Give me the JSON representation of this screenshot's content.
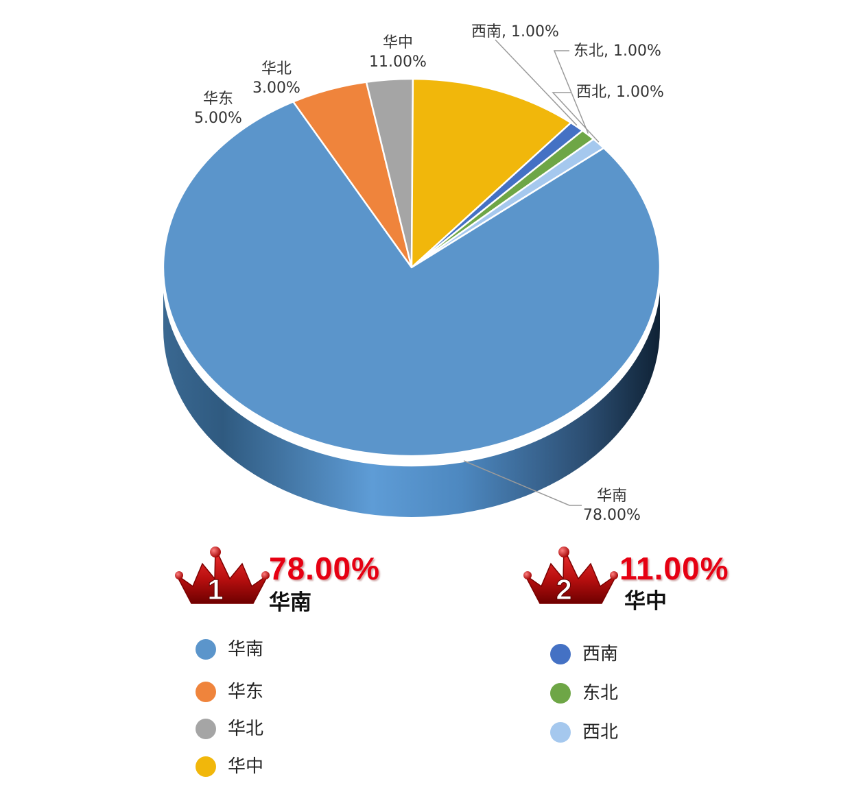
{
  "chart_data": {
    "type": "pie",
    "title": "",
    "categories": [
      "华南",
      "华东",
      "华北",
      "华中",
      "西南",
      "东北",
      "西北"
    ],
    "values": [
      78.0,
      5.0,
      3.0,
      11.0,
      1.0,
      1.0,
      1.0
    ],
    "unit": "%",
    "colors": [
      "#5b95cb",
      "#ef843c",
      "#a5a5a5",
      "#f1b70b",
      "#4471c4",
      "#6ea646",
      "#a5c8ee"
    ],
    "data_labels": [
      {
        "category": "华南",
        "text": "华南",
        "value_text": "78.00%"
      },
      {
        "category": "华东",
        "text": "华东",
        "value_text": "5.00%"
      },
      {
        "category": "华北",
        "text": "华北",
        "value_text": "3.00%"
      },
      {
        "category": "华中",
        "text": "华中",
        "value_text": "11.00%"
      },
      {
        "category": "西南",
        "text": "西南, 1.00%"
      },
      {
        "category": "东北",
        "text": "东北, 1.00%"
      },
      {
        "category": "西北",
        "text": "西北, 1.00%"
      }
    ],
    "style": "3d",
    "legend_position": "bottom",
    "grid": false
  },
  "ranking": [
    {
      "rank": "1",
      "percent": "78.00%",
      "name": "华南"
    },
    {
      "rank": "2",
      "percent": "11.00%",
      "name": "华中"
    }
  ],
  "legend": {
    "left": [
      {
        "label": "华南",
        "color": "#5b95cb"
      },
      {
        "label": "华东",
        "color": "#ef843c"
      },
      {
        "label": "华北",
        "color": "#a5a5a5"
      },
      {
        "label": "华中",
        "color": "#f1b70b"
      }
    ],
    "right": [
      {
        "label": "西南",
        "color": "#4471c4"
      },
      {
        "label": "东北",
        "color": "#6ea646"
      },
      {
        "label": "西北",
        "color": "#a5c8ee"
      }
    ]
  }
}
